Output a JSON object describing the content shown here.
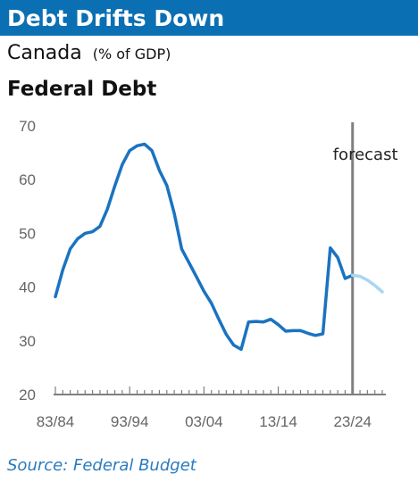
{
  "header": {
    "title": "Debt Drifts Down",
    "subtitle": "Canada",
    "unit": "(% of GDP)"
  },
  "source": "Source: Federal Budget",
  "colors": {
    "title_bar": "#0b6fb3",
    "actual_line": "#1a73c1",
    "forecast_line": "#a9d6f5",
    "divider": "#808080",
    "axis": "#7f7f7f",
    "source_text": "#2a7bbf"
  },
  "chart_data": {
    "type": "line",
    "title": "Federal Debt",
    "xlabel": "",
    "ylabel": "",
    "ylim": [
      20,
      70
    ],
    "yticks": [
      20,
      30,
      40,
      50,
      60,
      70
    ],
    "xlim": [
      1983,
      2027
    ],
    "xticks": [
      {
        "label": "83/84",
        "x": 1983
      },
      {
        "label": "93/94",
        "x": 1993
      },
      {
        "label": "03/04",
        "x": 2003
      },
      {
        "label": "13/14",
        "x": 2013
      },
      {
        "label": "23/24",
        "x": 2023
      }
    ],
    "grid": false,
    "forecast_start": 2023,
    "annotation": "forecast",
    "series": [
      {
        "name": "",
        "style": "actual",
        "points": [
          [
            1983,
            38.2
          ],
          [
            1984,
            43.2
          ],
          [
            1985,
            47.1
          ],
          [
            1986,
            49.0
          ],
          [
            1987,
            50.0
          ],
          [
            1988,
            50.3
          ],
          [
            1989,
            51.3
          ],
          [
            1990,
            54.5
          ],
          [
            1991,
            58.8
          ],
          [
            1992,
            62.8
          ],
          [
            1993,
            65.4
          ],
          [
            1994,
            66.3
          ],
          [
            1995,
            66.6
          ],
          [
            1996,
            65.4
          ],
          [
            1997,
            61.7
          ],
          [
            1998,
            58.9
          ],
          [
            1999,
            53.7
          ],
          [
            2000,
            47.1
          ],
          [
            2001,
            44.5
          ],
          [
            2002,
            41.9
          ],
          [
            2003,
            39.2
          ],
          [
            2004,
            37.0
          ],
          [
            2005,
            34.0
          ],
          [
            2006,
            31.2
          ],
          [
            2007,
            29.2
          ],
          [
            2008,
            28.4
          ],
          [
            2009,
            33.5
          ],
          [
            2010,
            33.6
          ],
          [
            2011,
            33.5
          ],
          [
            2012,
            34.0
          ],
          [
            2013,
            33.0
          ],
          [
            2014,
            31.8
          ],
          [
            2015,
            31.9
          ],
          [
            2016,
            31.9
          ],
          [
            2017,
            31.4
          ],
          [
            2018,
            31.0
          ],
          [
            2019,
            31.3
          ],
          [
            2020,
            47.3
          ],
          [
            2021,
            45.5
          ],
          [
            2022,
            41.6
          ],
          [
            2023,
            42.2
          ]
        ]
      },
      {
        "name": "",
        "style": "forecast",
        "points": [
          [
            2023,
            42.2
          ],
          [
            2024,
            42.0
          ],
          [
            2025,
            41.3
          ],
          [
            2026,
            40.3
          ],
          [
            2027,
            39.1
          ]
        ]
      }
    ]
  }
}
